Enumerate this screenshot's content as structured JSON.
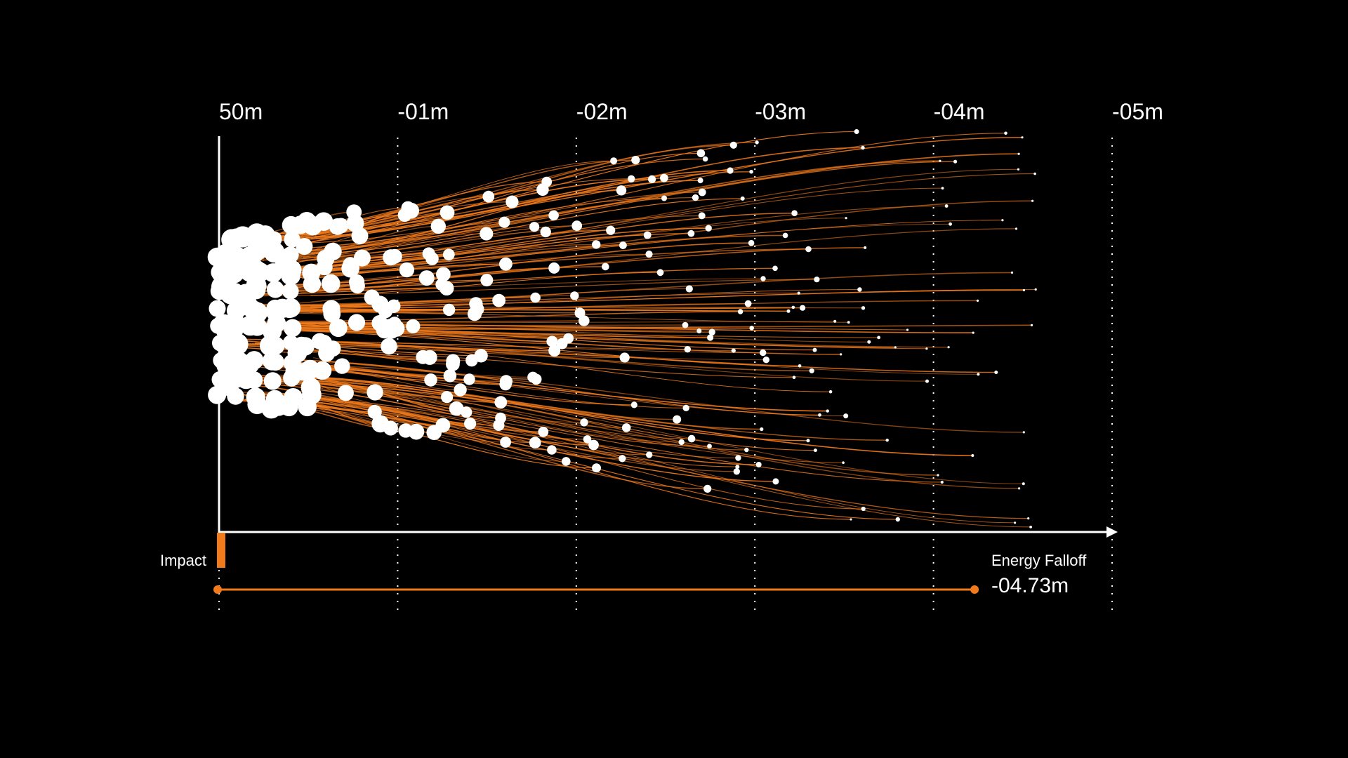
{
  "chart_data": {
    "type": "scatter",
    "title": "",
    "xlabel": "",
    "ylabel": "",
    "x_ticks": [
      "50m",
      "-01m",
      "-02m",
      "-03m",
      "-04m",
      "-05m"
    ],
    "x_range": [
      0,
      5
    ],
    "grid": true,
    "impact_label": "Impact",
    "falloff_label": "Energy Falloff",
    "falloff_value": "-04.73m",
    "falloff_distance": 4.23,
    "particle_count": 320,
    "colors": {
      "background": "#000000",
      "trail": "#f07a1c",
      "particle": "#ffffff",
      "axis": "#ffffff",
      "accent": "#f07a1c"
    }
  }
}
